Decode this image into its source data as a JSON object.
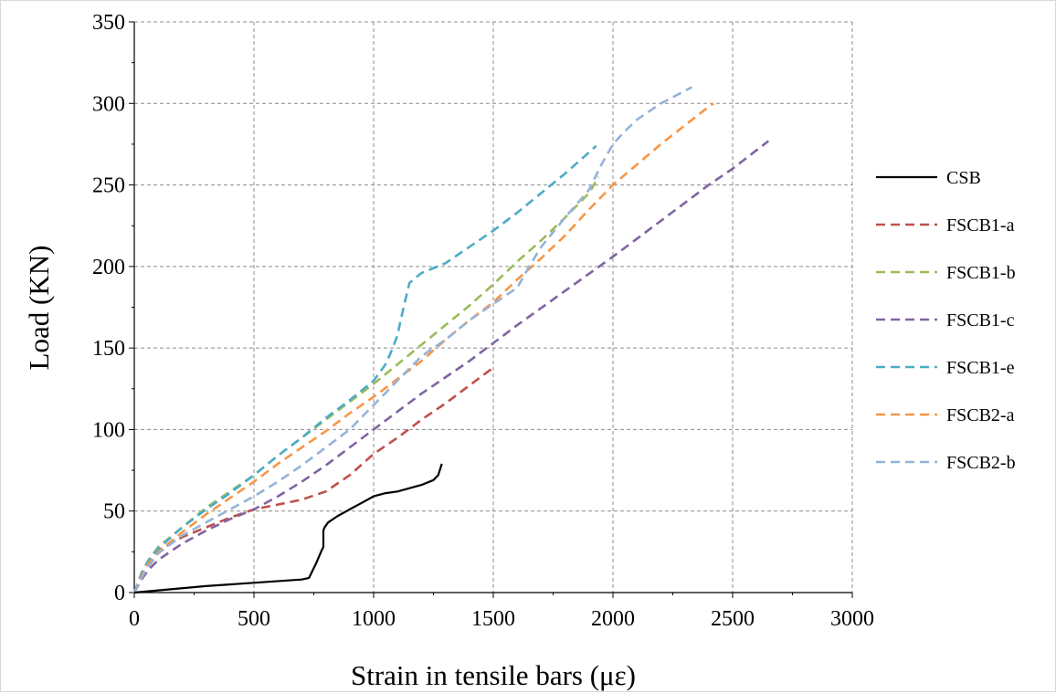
{
  "chart_data": {
    "type": "line",
    "xlabel": "Strain in tensile bars (με)",
    "ylabel": "Load (KN)",
    "xlim": [
      0,
      3000
    ],
    "ylim": [
      0,
      350
    ],
    "xticks": [
      0,
      500,
      1000,
      1500,
      2000,
      2500,
      3000
    ],
    "yticks": [
      0,
      50,
      100,
      150,
      200,
      250,
      300,
      350
    ],
    "grid": true,
    "legend_position": "right",
    "series": [
      {
        "name": "CSB",
        "color": "#000000",
        "dash": "solid",
        "x": [
          0,
          300,
          700,
          730,
          760,
          780,
          790,
          790,
          795,
          810,
          850,
          900,
          950,
          1000,
          1050,
          1100,
          1150,
          1200,
          1250,
          1270,
          1285
        ],
        "y": [
          0,
          4,
          8,
          9,
          18,
          25,
          28,
          38,
          40,
          43,
          47,
          51,
          55,
          59,
          61,
          62,
          64,
          66,
          69,
          72,
          79
        ]
      },
      {
        "name": "FSCB1-a",
        "color": "#c0504d",
        "dash": "dashed",
        "x": [
          0,
          50,
          100,
          200,
          300,
          400,
          500,
          600,
          700,
          800,
          900,
          1000,
          1100,
          1200,
          1300,
          1400,
          1500
        ],
        "y": [
          0,
          16,
          26,
          34,
          40,
          46,
          51,
          54,
          57,
          62,
          72,
          85,
          95,
          106,
          116,
          127,
          138
        ]
      },
      {
        "name": "FSCB1-b",
        "color": "#9bbb59",
        "dash": "dashed",
        "x": [
          0,
          30,
          60,
          100,
          200,
          300,
          400,
          500,
          600,
          700,
          800,
          900,
          1000,
          1100,
          1200,
          1300,
          1400,
          1500,
          1600,
          1700,
          1800,
          1900,
          1940
        ],
        "y": [
          0,
          10,
          20,
          28,
          40,
          52,
          62,
          72,
          84,
          95,
          106,
          117,
          128,
          140,
          152,
          164,
          176,
          189,
          203,
          216,
          230,
          245,
          255
        ]
      },
      {
        "name": "FSCB1-c",
        "color": "#8064a2",
        "dash": "dashed",
        "x": [
          0,
          30,
          60,
          100,
          200,
          300,
          400,
          500,
          600,
          700,
          800,
          900,
          1000,
          1200,
          1400,
          1600,
          1800,
          2000,
          2200,
          2400,
          2500,
          2650
        ],
        "y": [
          0,
          8,
          14,
          20,
          30,
          38,
          45,
          51,
          59,
          68,
          78,
          89,
          100,
          122,
          142,
          164,
          185,
          206,
          228,
          250,
          260,
          277
        ]
      },
      {
        "name": "FSCB1-e",
        "color": "#4bacc6",
        "dash": "dashed",
        "x": [
          0,
          30,
          60,
          100,
          200,
          300,
          400,
          500,
          600,
          700,
          800,
          900,
          1000,
          1050,
          1080,
          1100,
          1110,
          1130,
          1150,
          1200,
          1300,
          1400,
          1500,
          1600,
          1700,
          1800,
          1900,
          1930
        ],
        "y": [
          0,
          12,
          20,
          27,
          40,
          51,
          61,
          72,
          84,
          95,
          107,
          118,
          130,
          140,
          150,
          158,
          165,
          178,
          190,
          196,
          202,
          212,
          222,
          233,
          245,
          257,
          270,
          274
        ]
      },
      {
        "name": "FSCB2-a",
        "color": "#f79646",
        "dash": "dashed",
        "x": [
          0,
          30,
          60,
          100,
          200,
          300,
          400,
          500,
          600,
          700,
          800,
          900,
          1000,
          1100,
          1200,
          1300,
          1400,
          1500,
          1600,
          1700,
          1800,
          1900,
          2000,
          2200,
          2400,
          2420
        ],
        "y": [
          0,
          10,
          18,
          25,
          37,
          48,
          58,
          68,
          79,
          89,
          99,
          110,
          120,
          131,
          142,
          155,
          167,
          178,
          192,
          205,
          219,
          235,
          250,
          275,
          298,
          300
        ]
      },
      {
        "name": "FSCB2-b",
        "color": "#95b3d7",
        "dash": "dashed",
        "x": [
          0,
          30,
          60,
          100,
          200,
          300,
          400,
          500,
          600,
          700,
          800,
          900,
          1000,
          1100,
          1200,
          1300,
          1400,
          1500,
          1600,
          1650,
          1700,
          1800,
          1900,
          1950,
          2000,
          2050,
          2100,
          2200,
          2330
        ],
        "y": [
          0,
          9,
          16,
          24,
          35,
          43,
          51,
          59,
          68,
          78,
          89,
          100,
          115,
          130,
          145,
          155,
          167,
          177,
          187,
          200,
          212,
          230,
          247,
          262,
          275,
          283,
          290,
          300,
          310
        ]
      }
    ]
  }
}
